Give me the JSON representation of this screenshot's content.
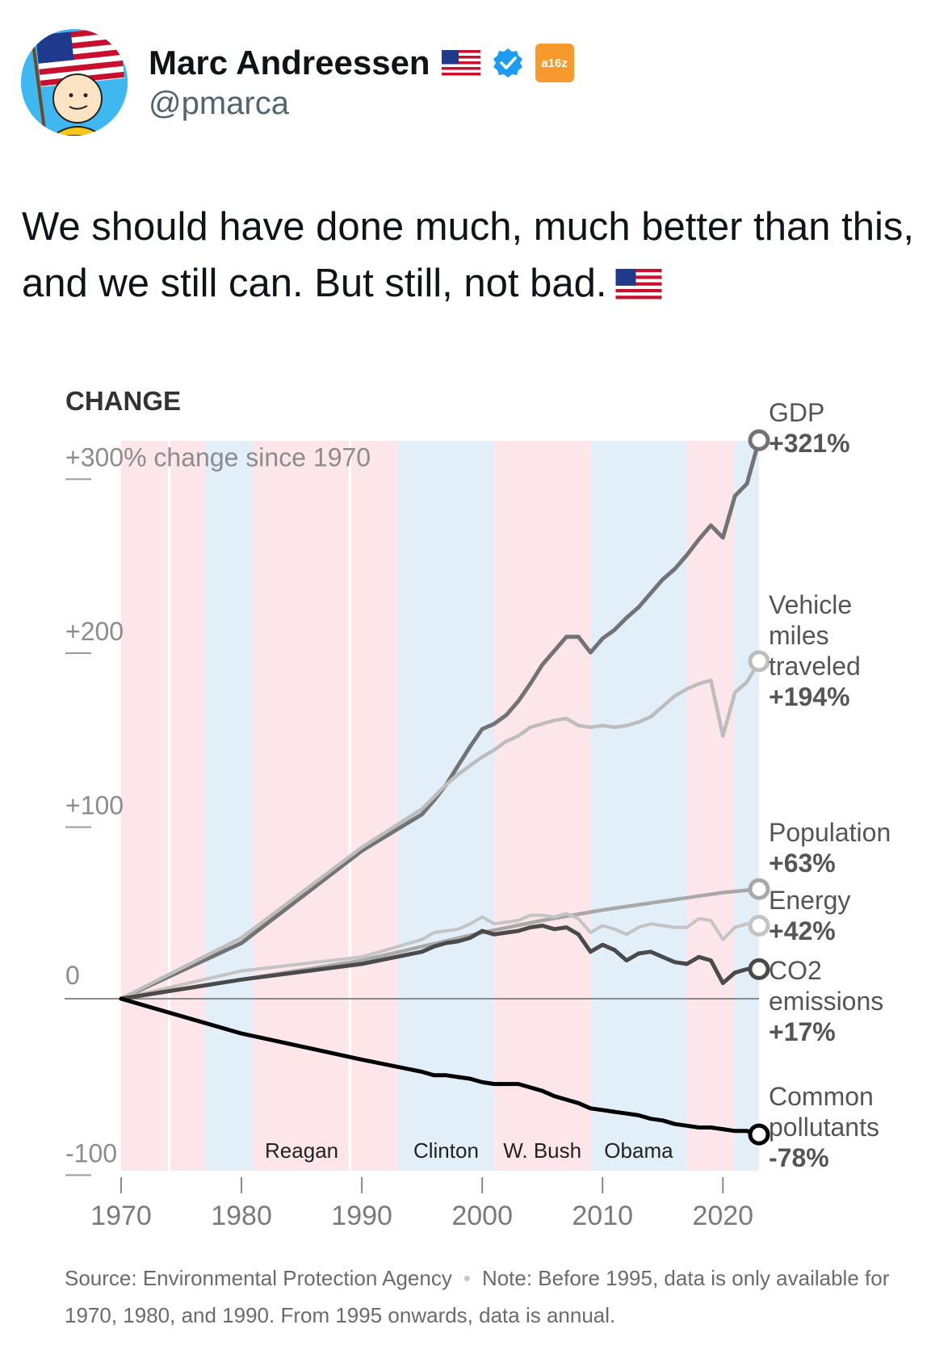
{
  "author": {
    "name": "Marc Andreessen",
    "handle": "@pmarca",
    "affiliate_badge": "a16z",
    "flag_icon": "us-flag-icon",
    "verified_icon": "verified-badge-icon"
  },
  "tweet": {
    "text": "We should have done much, much better than this, and we still can. But still, not bad."
  },
  "colors": {
    "republican_band": "#fde6ea",
    "democrat_band": "#e2eff9",
    "gdp": "#737373",
    "vmt": "#bdbdbd",
    "population": "#a8a8a8",
    "energy": "#c4c4c4",
    "co2": "#4a4a4a",
    "pollutants": "#000000"
  },
  "chart_data": {
    "type": "line",
    "title": "CHANGE",
    "y_unit_label": "+300% change since 1970",
    "ylim": [
      -100,
      300
    ],
    "xlim": [
      1970,
      2023
    ],
    "y_ticks": [
      {
        "value": 300,
        "label": "+300% change since 1970"
      },
      {
        "value": 200,
        "label": "+200"
      },
      {
        "value": 100,
        "label": "+100"
      },
      {
        "value": 0,
        "label": "0"
      },
      {
        "value": -100,
        "label": "-100"
      }
    ],
    "x_ticks": [
      1970,
      1980,
      1990,
      2000,
      2010,
      2020
    ],
    "x_tick_labels": [
      "1970",
      "1980",
      "1990",
      "2000",
      "2010",
      "2020"
    ],
    "presidential_bands": [
      {
        "start": 1970,
        "end": 1974,
        "party": "R"
      },
      {
        "start": 1974,
        "end": 1977,
        "party": "R"
      },
      {
        "start": 1977,
        "end": 1981,
        "party": "D"
      },
      {
        "start": 1981,
        "end": 1989,
        "party": "R"
      },
      {
        "start": 1989,
        "end": 1993,
        "party": "R"
      },
      {
        "start": 1993,
        "end": 2001,
        "party": "D"
      },
      {
        "start": 2001,
        "end": 2009,
        "party": "R"
      },
      {
        "start": 2009,
        "end": 2017,
        "party": "D"
      },
      {
        "start": 2017,
        "end": 2021,
        "party": "R"
      },
      {
        "start": 2021,
        "end": 2023,
        "party": "D"
      }
    ],
    "president_labels": [
      {
        "label": "Reagan",
        "x": 1985
      },
      {
        "label": "Clinton",
        "x": 1997
      },
      {
        "label": "W. Bush",
        "x": 2005
      },
      {
        "label": "Obama",
        "x": 2013
      }
    ],
    "series": [
      {
        "name": "GDP",
        "end_label": "+321%",
        "color_key": "gdp",
        "x": [
          1970,
          1980,
          1990,
          1995,
          1996,
          1997,
          1998,
          1999,
          2000,
          2001,
          2002,
          2003,
          2004,
          2005,
          2006,
          2007,
          2008,
          2009,
          2010,
          2011,
          2012,
          2013,
          2014,
          2015,
          2016,
          2017,
          2018,
          2019,
          2020,
          2021,
          2022,
          2023
        ],
        "y": [
          0,
          32,
          85,
          106,
          114,
          123,
          134,
          145,
          155,
          158,
          163,
          171,
          181,
          192,
          200,
          208,
          208,
          199,
          207,
          212,
          219,
          225,
          233,
          241,
          247,
          255,
          264,
          272,
          265,
          289,
          296,
          321
        ]
      },
      {
        "name": "Vehicle miles traveled",
        "end_label": "+194%",
        "color_key": "vmt",
        "x": [
          1970,
          1980,
          1990,
          1995,
          1996,
          1997,
          1998,
          1999,
          2000,
          2001,
          2002,
          2003,
          2004,
          2005,
          2006,
          2007,
          2008,
          2009,
          2010,
          2011,
          2012,
          2013,
          2014,
          2015,
          2016,
          2017,
          2018,
          2019,
          2020,
          2021,
          2022,
          2023
        ],
        "y": [
          0,
          35,
          87,
          109,
          116,
          123,
          129,
          134,
          139,
          143,
          148,
          151,
          156,
          158,
          160,
          161,
          157,
          156,
          157,
          156,
          157,
          159,
          162,
          168,
          174,
          178,
          181,
          183,
          151,
          176,
          182,
          194
        ]
      },
      {
        "name": "Population",
        "end_label": "+63%",
        "color_key": "population",
        "x": [
          1970,
          1980,
          1990,
          2000,
          2005,
          2010,
          2015,
          2020,
          2023
        ],
        "y": [
          0,
          11,
          22,
          38,
          45,
          51,
          56,
          61,
          63
        ]
      },
      {
        "name": "Energy",
        "end_label": "+42%",
        "color_key": "energy",
        "x": [
          1970,
          1980,
          1990,
          1995,
          1996,
          1997,
          1998,
          1999,
          2000,
          2001,
          2002,
          2003,
          2004,
          2005,
          2006,
          2007,
          2008,
          2009,
          2010,
          2011,
          2012,
          2013,
          2014,
          2015,
          2016,
          2017,
          2018,
          2019,
          2020,
          2021,
          2022,
          2023
        ],
        "y": [
          0,
          16,
          24,
          34,
          38,
          39,
          40,
          43,
          47,
          43,
          44,
          45,
          48,
          48,
          47,
          49,
          46,
          38,
          42,
          40,
          37,
          41,
          43,
          42,
          41,
          41,
          46,
          45,
          34,
          41,
          43,
          42
        ]
      },
      {
        "name": "CO2 emissions",
        "end_label": "+17%",
        "color_key": "co2",
        "x": [
          1970,
          1980,
          1990,
          1995,
          1996,
          1997,
          1998,
          1999,
          2000,
          2001,
          2002,
          2003,
          2004,
          2005,
          2006,
          2007,
          2008,
          2009,
          2010,
          2011,
          2012,
          2013,
          2014,
          2015,
          2016,
          2017,
          2018,
          2019,
          2020,
          2021,
          2022,
          2023
        ],
        "y": [
          0,
          11,
          20,
          27,
          30,
          32,
          33,
          35,
          39,
          37,
          38,
          39,
          41,
          42,
          40,
          41,
          37,
          27,
          31,
          28,
          22,
          26,
          27,
          24,
          21,
          20,
          24,
          22,
          9,
          15,
          17,
          17
        ]
      },
      {
        "name": "Common pollutants",
        "end_label": "-78%",
        "color_key": "pollutants",
        "x": [
          1970,
          1980,
          1990,
          1995,
          1996,
          1997,
          1998,
          1999,
          2000,
          2001,
          2002,
          2003,
          2004,
          2005,
          2006,
          2007,
          2008,
          2009,
          2010,
          2011,
          2012,
          2013,
          2014,
          2015,
          2016,
          2017,
          2018,
          2019,
          2020,
          2021,
          2022,
          2023
        ],
        "y": [
          0,
          -20,
          -35,
          -42,
          -44,
          -44,
          -45,
          -46,
          -48,
          -49,
          -49,
          -49,
          -51,
          -53,
          -56,
          -58,
          -60,
          -63,
          -64,
          -65,
          -66,
          -67,
          -69,
          -70,
          -72,
          -73,
          -74,
          -74,
          -75,
          -76,
          -76,
          -78
        ]
      }
    ],
    "series_labels": [
      {
        "lines": [
          "GDP"
        ],
        "value": "+321%"
      },
      {
        "lines": [
          "Vehicle",
          "miles",
          "traveled"
        ],
        "value": "+194%"
      },
      {
        "lines": [
          "Population"
        ],
        "value": "+63%"
      },
      {
        "lines": [
          "Energy"
        ],
        "value": "+42%"
      },
      {
        "lines": [
          "CO2",
          "emissions"
        ],
        "value": "+17%"
      },
      {
        "lines": [
          "Common",
          "pollutants"
        ],
        "value": "-78%"
      }
    ],
    "source": "Source: Environmental Protection Agency",
    "note": "Note: Before 1995, data is only available for 1970, 1980, and 1990. From 1995 onwards, data is annual."
  }
}
